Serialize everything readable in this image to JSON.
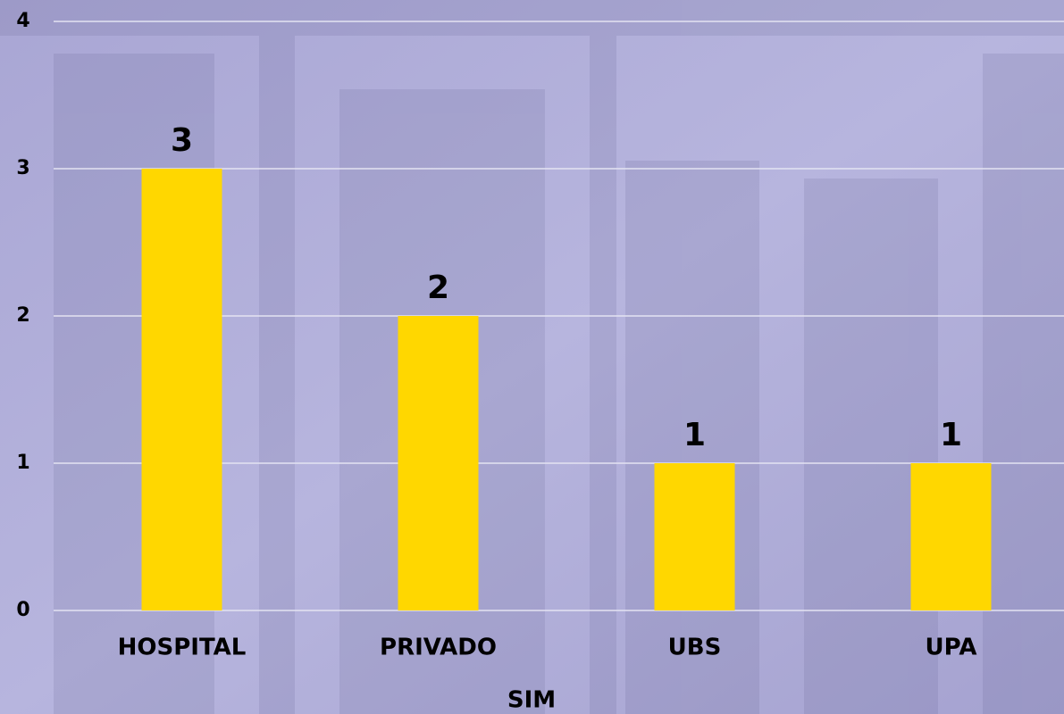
{
  "chart_data": {
    "type": "bar",
    "x_label": "SIM",
    "categories": [
      "HOSPITAL",
      "PRIVADO",
      "UBS",
      "UPA"
    ],
    "values": [
      3,
      2,
      1,
      1
    ],
    "color": "#ffd700",
    "ylim": [
      0,
      4
    ],
    "yticks": [
      0,
      1,
      2,
      3,
      4
    ],
    "grid": true,
    "data_labels": true
  }
}
